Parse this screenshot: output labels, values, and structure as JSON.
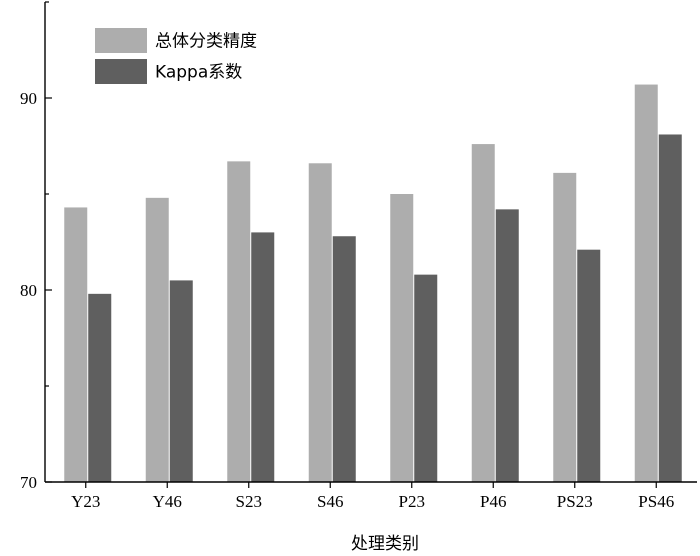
{
  "chart_data": {
    "type": "bar",
    "categories": [
      "Y23",
      "Y46",
      "S23",
      "S46",
      "P23",
      "P46",
      "PS23",
      "PS46"
    ],
    "series": [
      {
        "name": "总体分类精度",
        "color": "#adadad",
        "values": [
          84.3,
          84.8,
          86.7,
          86.6,
          85.0,
          87.6,
          86.1,
          90.7
        ]
      },
      {
        "name": "Kappa系数",
        "color": "#5f5f5f",
        "values": [
          79.8,
          80.5,
          83.0,
          82.8,
          80.8,
          84.2,
          82.1,
          88.1
        ]
      }
    ],
    "xlabel": "处理类别",
    "ylabel": "",
    "ylim": [
      70,
      95
    ],
    "yticks": [
      70,
      80,
      90
    ],
    "legend_position": "top-left",
    "grid": false
  }
}
